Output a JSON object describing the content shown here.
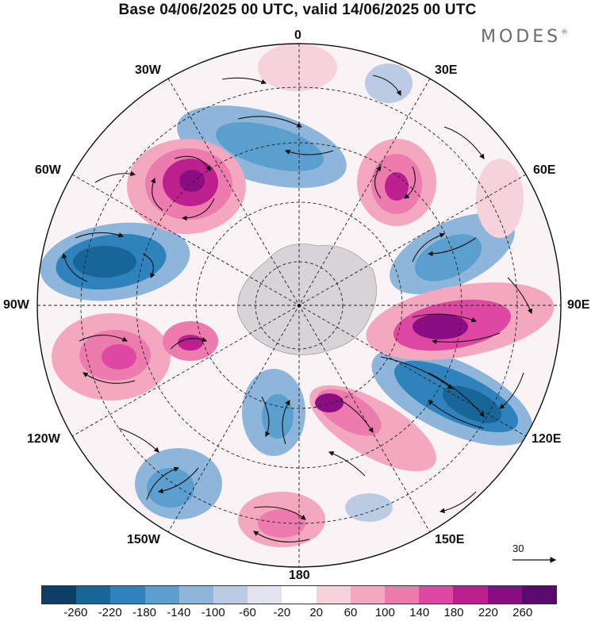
{
  "header": {
    "title": "Base 04/06/2025 00 UTC, valid 14/06/2025 00 UTC",
    "brand": "MODES",
    "brand_mark": "®"
  },
  "map": {
    "projection": "south-polar-stereographic",
    "longitude_labels": {
      "n0": "0",
      "e30": "30E",
      "e60": "60E",
      "e90": "90E",
      "e120": "120E",
      "e150": "150E",
      "n180": "180",
      "w150": "150W",
      "w120": "120W",
      "w90": "90W",
      "w60": "60W",
      "w30": "30W"
    },
    "vector_reference": {
      "label": "30",
      "value": 30
    }
  },
  "colorbar": {
    "ticks": [
      "-260",
      "-220",
      "-180",
      "-140",
      "-100",
      "-60",
      "-20",
      "20",
      "60",
      "100",
      "140",
      "180",
      "220",
      "260"
    ],
    "colors": [
      "#0c3f66",
      "#18659a",
      "#2f83bd",
      "#5a9fce",
      "#8db6da",
      "#bccbe4",
      "#e2e3ef",
      "#ffffff",
      "#f6d3db",
      "#f3a8c0",
      "#ec7bae",
      "#dd48a2",
      "#bc1f8e",
      "#8b0d84",
      "#5a0a6e"
    ]
  }
}
